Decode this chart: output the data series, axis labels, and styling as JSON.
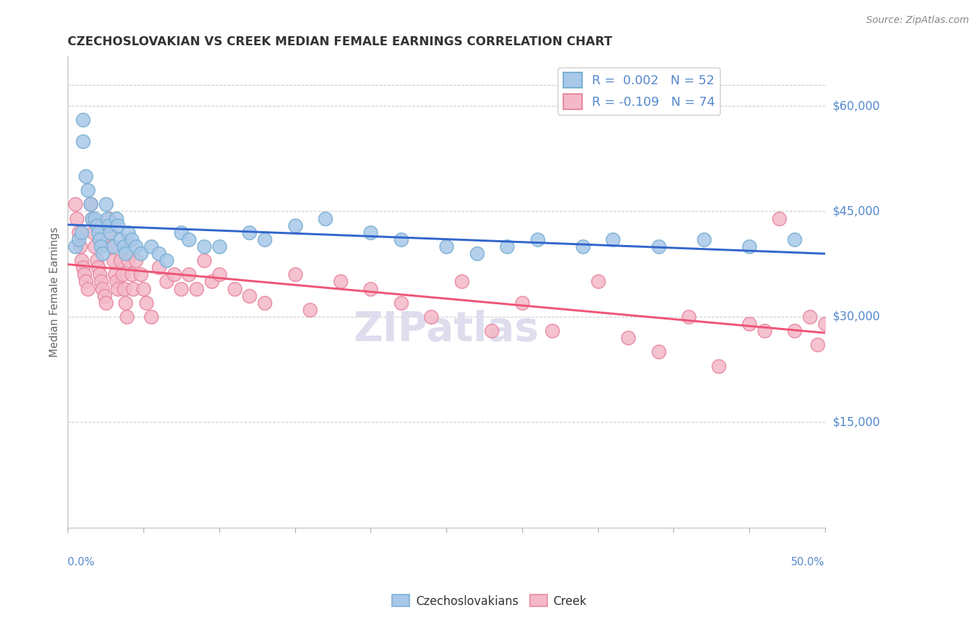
{
  "title": "CZECHOSLOVAKIAN VS CREEK MEDIAN FEMALE EARNINGS CORRELATION CHART",
  "source": "Source: ZipAtlas.com",
  "ylabel": "Median Female Earnings",
  "ytick_labels": [
    "$15,000",
    "$30,000",
    "$45,000",
    "$60,000"
  ],
  "ytick_values": [
    15000,
    30000,
    45000,
    60000
  ],
  "ymin": 0,
  "ymax": 67000,
  "xmin": 0.0,
  "xmax": 0.5,
  "legend_r1": "R =  0.002",
  "legend_n1": "N = 52",
  "legend_r2": "R = -0.109",
  "legend_n2": "N = 74",
  "blue_dot_face": "#A8C8E8",
  "blue_dot_edge": "#7AAFD4",
  "pink_dot_face": "#F4B8C8",
  "pink_dot_edge": "#E888A0",
  "blue_trend": "#3366CC",
  "pink_trend": "#EE5577",
  "axis_label_color": "#5588CC",
  "grid_color": "#CCCCCC",
  "title_color": "#333333",
  "watermark_color": "#DDDDEE",
  "czechoslovakian_x": [
    0.005,
    0.007,
    0.009,
    0.01,
    0.01,
    0.012,
    0.013,
    0.015,
    0.016,
    0.018,
    0.019,
    0.02,
    0.021,
    0.022,
    0.023,
    0.025,
    0.026,
    0.027,
    0.028,
    0.03,
    0.032,
    0.033,
    0.035,
    0.037,
    0.038,
    0.04,
    0.042,
    0.045,
    0.048,
    0.055,
    0.06,
    0.065,
    0.075,
    0.08,
    0.09,
    0.1,
    0.12,
    0.13,
    0.15,
    0.17,
    0.2,
    0.22,
    0.25,
    0.27,
    0.29,
    0.31,
    0.34,
    0.36,
    0.39,
    0.42,
    0.45,
    0.48
  ],
  "czechoslovakian_y": [
    40000,
    41000,
    42000,
    58000,
    55000,
    50000,
    48000,
    46000,
    44000,
    44000,
    43000,
    42000,
    41000,
    40000,
    39000,
    46000,
    44000,
    43000,
    42000,
    40000,
    44000,
    43000,
    41000,
    40000,
    39000,
    42000,
    41000,
    40000,
    39000,
    40000,
    39000,
    38000,
    42000,
    41000,
    40000,
    40000,
    42000,
    41000,
    43000,
    44000,
    42000,
    41000,
    40000,
    39000,
    40000,
    41000,
    40000,
    41000,
    40000,
    41000,
    40000,
    41000
  ],
  "creek_x": [
    0.005,
    0.006,
    0.007,
    0.008,
    0.009,
    0.01,
    0.011,
    0.012,
    0.013,
    0.015,
    0.016,
    0.017,
    0.018,
    0.019,
    0.02,
    0.021,
    0.022,
    0.023,
    0.024,
    0.025,
    0.027,
    0.028,
    0.029,
    0.03,
    0.031,
    0.032,
    0.033,
    0.035,
    0.036,
    0.037,
    0.038,
    0.039,
    0.04,
    0.042,
    0.043,
    0.045,
    0.048,
    0.05,
    0.052,
    0.055,
    0.06,
    0.065,
    0.07,
    0.075,
    0.08,
    0.085,
    0.09,
    0.095,
    0.1,
    0.11,
    0.12,
    0.13,
    0.15,
    0.16,
    0.18,
    0.2,
    0.22,
    0.24,
    0.26,
    0.28,
    0.3,
    0.32,
    0.35,
    0.37,
    0.39,
    0.41,
    0.43,
    0.45,
    0.46,
    0.47,
    0.48,
    0.49,
    0.495,
    0.5
  ],
  "creek_y": [
    46000,
    44000,
    42000,
    40000,
    38000,
    37000,
    36000,
    35000,
    34000,
    46000,
    44000,
    42000,
    40000,
    38000,
    37000,
    36000,
    35000,
    34000,
    33000,
    32000,
    44000,
    42000,
    40000,
    38000,
    36000,
    35000,
    34000,
    38000,
    36000,
    34000,
    32000,
    30000,
    38000,
    36000,
    34000,
    38000,
    36000,
    34000,
    32000,
    30000,
    37000,
    35000,
    36000,
    34000,
    36000,
    34000,
    38000,
    35000,
    36000,
    34000,
    33000,
    32000,
    36000,
    31000,
    35000,
    34000,
    32000,
    30000,
    35000,
    28000,
    32000,
    28000,
    35000,
    27000,
    25000,
    30000,
    23000,
    29000,
    28000,
    44000,
    28000,
    30000,
    26000,
    29000
  ]
}
